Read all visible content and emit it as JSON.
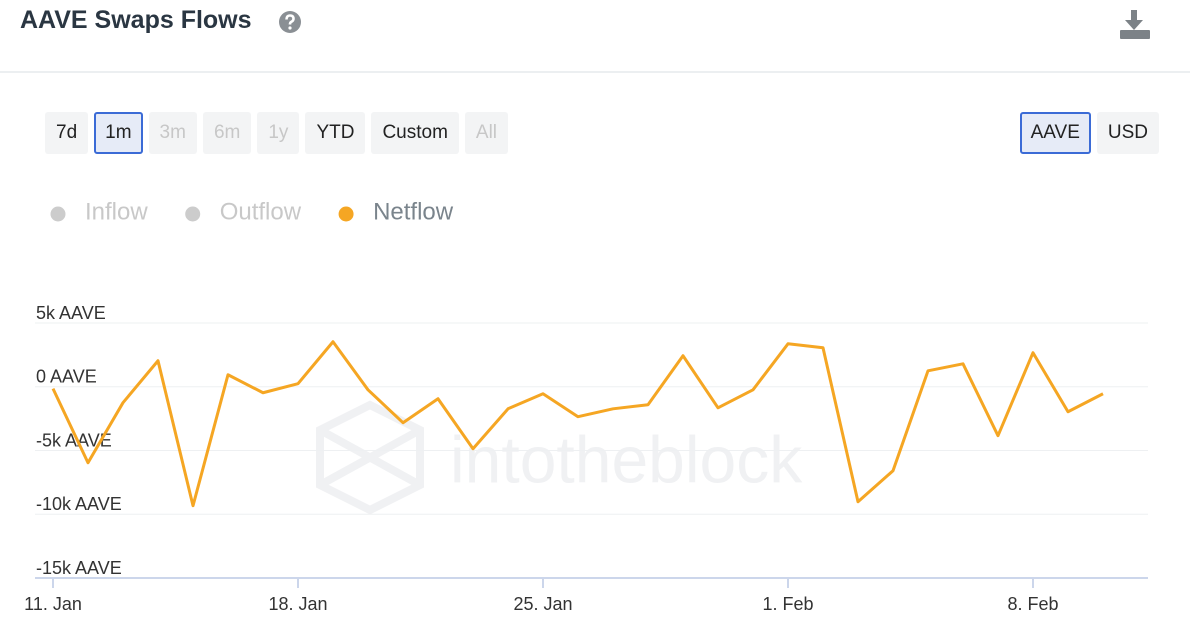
{
  "header": {
    "title": "AAVE Swaps Flows"
  },
  "range_buttons": [
    {
      "label": "7d",
      "state": "normal"
    },
    {
      "label": "1m",
      "state": "selected"
    },
    {
      "label": "3m",
      "state": "disabled"
    },
    {
      "label": "6m",
      "state": "disabled"
    },
    {
      "label": "1y",
      "state": "disabled"
    },
    {
      "label": "YTD",
      "state": "normal"
    },
    {
      "label": "Custom",
      "state": "normal"
    },
    {
      "label": "All",
      "state": "disabled"
    }
  ],
  "unit_buttons": [
    {
      "label": "AAVE",
      "state": "selected"
    },
    {
      "label": "USD",
      "state": "normal"
    }
  ],
  "watermark": "intotheblock",
  "chart_data": {
    "type": "line",
    "hidden_series": [
      {
        "name": "Inflow",
        "color": "#cccccc"
      },
      {
        "name": "Outflow",
        "color": "#cccccc"
      }
    ],
    "categories": [
      "11. Jan",
      null,
      null,
      null,
      null,
      null,
      null,
      "18. Jan",
      null,
      null,
      null,
      null,
      null,
      null,
      "25. Jan",
      null,
      null,
      null,
      null,
      null,
      null,
      "1. Feb",
      null,
      null,
      null,
      null,
      null,
      null,
      "8. Feb",
      null,
      null
    ],
    "series": [
      {
        "name": "Netflow",
        "color": "#f5a623",
        "values": [
          -150,
          -5960,
          -1250,
          2040,
          -9330,
          940,
          -470,
          240,
          3530,
          -240,
          -2820,
          -940,
          -4860,
          -1730,
          -550,
          -2350,
          -1730,
          -1410,
          2430,
          -1650,
          -240,
          3370,
          3060,
          -9020,
          -6590,
          1250,
          1800,
          -3840,
          2670,
          -1960,
          -550
        ]
      }
    ],
    "ylim": [
      -15000,
      5000
    ],
    "yticks": [
      {
        "value": 5000,
        "label": "5k AAVE"
      },
      {
        "value": 0,
        "label": "0 AAVE"
      },
      {
        "value": -5000,
        "label": "-5k AAVE"
      },
      {
        "value": -10000,
        "label": "-10k AAVE"
      },
      {
        "value": -15000,
        "label": "-15k AAVE"
      }
    ],
    "grid": true
  }
}
